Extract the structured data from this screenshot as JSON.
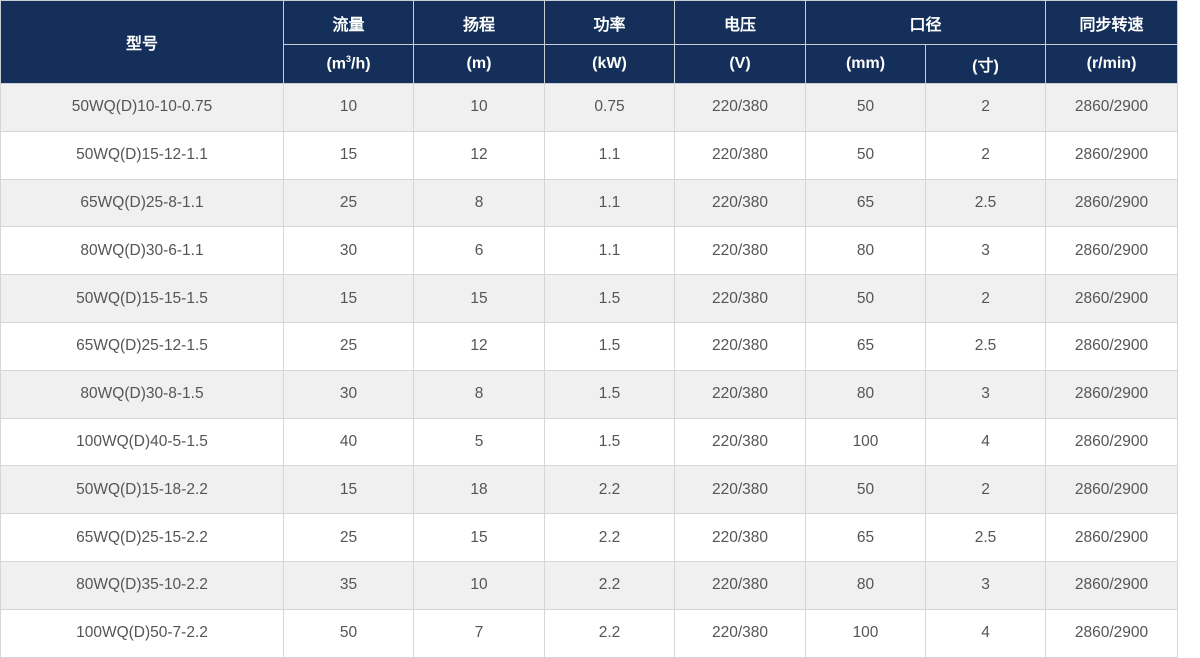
{
  "header": {
    "model": "型号",
    "flow": "流量",
    "flow_unit_pre": "(m",
    "flow_unit_sup": "3",
    "flow_unit_post": "/h)",
    "head": "扬程",
    "head_unit": "(m)",
    "power": "功率",
    "power_unit": "(kW)",
    "voltage": "电压",
    "voltage_unit": "(V)",
    "diameter": "口径",
    "diameter_mm": "(mm)",
    "diameter_cun": "(寸)",
    "speed": "同步转速",
    "speed_unit": "(r/min)"
  },
  "rows": [
    [
      "50WQ(D)10-10-0.75",
      "10",
      "10",
      "0.75",
      "220/380",
      "50",
      "2",
      "2860/2900"
    ],
    [
      "50WQ(D)15-12-1.1",
      "15",
      "12",
      "1.1",
      "220/380",
      "50",
      "2",
      "2860/2900"
    ],
    [
      "65WQ(D)25-8-1.1",
      "25",
      "8",
      "1.1",
      "220/380",
      "65",
      "2.5",
      "2860/2900"
    ],
    [
      "80WQ(D)30-6-1.1",
      "30",
      "6",
      "1.1",
      "220/380",
      "80",
      "3",
      "2860/2900"
    ],
    [
      "50WQ(D)15-15-1.5",
      "15",
      "15",
      "1.5",
      "220/380",
      "50",
      "2",
      "2860/2900"
    ],
    [
      "65WQ(D)25-12-1.5",
      "25",
      "12",
      "1.5",
      "220/380",
      "65",
      "2.5",
      "2860/2900"
    ],
    [
      "80WQ(D)30-8-1.5",
      "30",
      "8",
      "1.5",
      "220/380",
      "80",
      "3",
      "2860/2900"
    ],
    [
      "100WQ(D)40-5-1.5",
      "40",
      "5",
      "1.5",
      "220/380",
      "100",
      "4",
      "2860/2900"
    ],
    [
      "50WQ(D)15-18-2.2",
      "15",
      "18",
      "2.2",
      "220/380",
      "50",
      "2",
      "2860/2900"
    ],
    [
      "65WQ(D)25-15-2.2",
      "25",
      "15",
      "2.2",
      "220/380",
      "65",
      "2.5",
      "2860/2900"
    ],
    [
      "80WQ(D)35-10-2.2",
      "35",
      "10",
      "2.2",
      "220/380",
      "80",
      "3",
      "2860/2900"
    ],
    [
      "100WQ(D)50-7-2.2",
      "50",
      "7",
      "2.2",
      "220/380",
      "100",
      "4",
      "2860/2900"
    ]
  ]
}
